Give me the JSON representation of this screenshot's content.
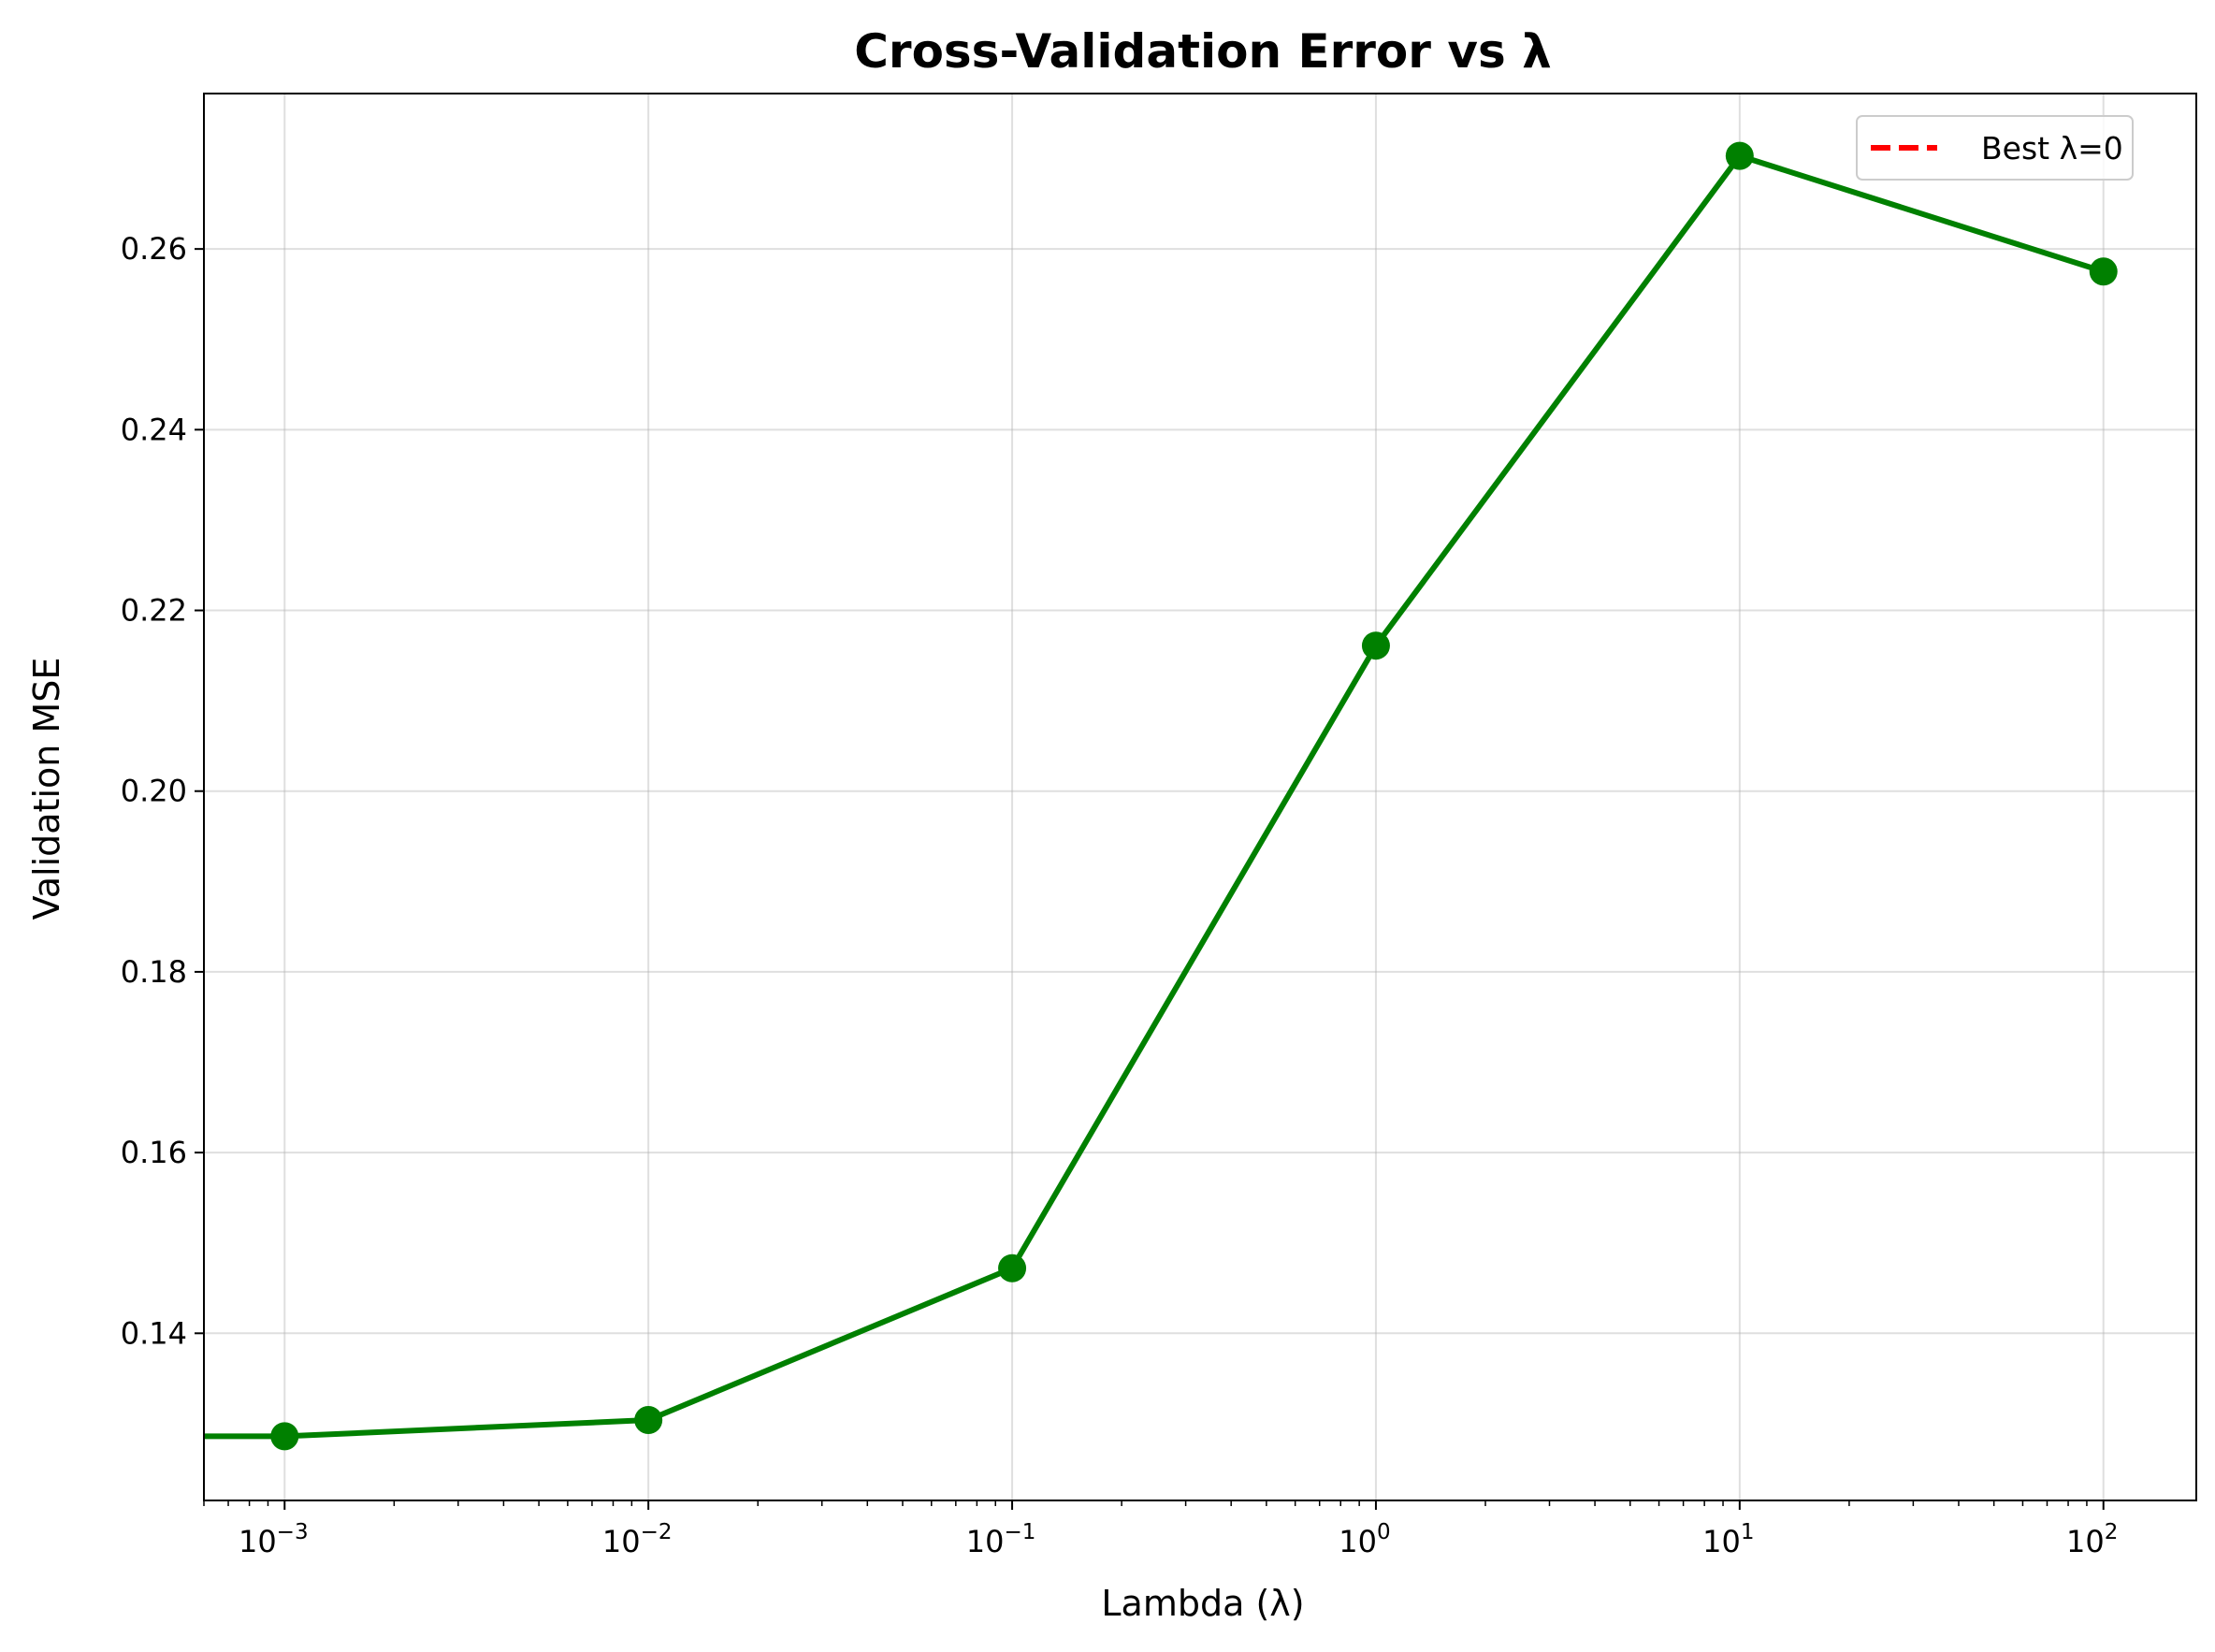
{
  "chart_data": {
    "type": "line",
    "title": "Cross-Validation Error vs λ",
    "xlabel": "Lambda (λ)",
    "ylabel": "Validation MSE",
    "xscale": "log",
    "xlim": [
      0.0006,
      180
    ],
    "ylim": [
      0.1215,
      0.2772
    ],
    "grid": true,
    "legend_position": "top-right",
    "x_ticks": [
      {
        "value": 0.001,
        "base": "10",
        "exp": "−3"
      },
      {
        "value": 0.01,
        "base": "10",
        "exp": "−2"
      },
      {
        "value": 0.1,
        "base": "10",
        "exp": "−1"
      },
      {
        "value": 1,
        "base": "10",
        "exp": "0"
      },
      {
        "value": 10,
        "base": "10",
        "exp": "1"
      },
      {
        "value": 100,
        "base": "10",
        "exp": "2"
      }
    ],
    "y_ticks": [
      {
        "value": 0.14,
        "label": "0.14"
      },
      {
        "value": 0.16,
        "label": "0.16"
      },
      {
        "value": 0.18,
        "label": "0.18"
      },
      {
        "value": 0.2,
        "label": "0.20"
      },
      {
        "value": 0.22,
        "label": "0.22"
      },
      {
        "value": 0.24,
        "label": "0.24"
      },
      {
        "value": 0.26,
        "label": "0.26"
      }
    ],
    "series": [
      {
        "name": "",
        "color": "#008000",
        "marker": "circle",
        "x": [
          0,
          0.001,
          0.01,
          0.1,
          1,
          10,
          100
        ],
        "y": [
          0.1286,
          0.1286,
          0.1304,
          0.1472,
          0.2161,
          0.2703,
          0.2575
        ]
      }
    ],
    "best_lambda": {
      "value": 0,
      "label": "Best λ=0",
      "color": "#ff0000",
      "style": "dashed"
    }
  }
}
